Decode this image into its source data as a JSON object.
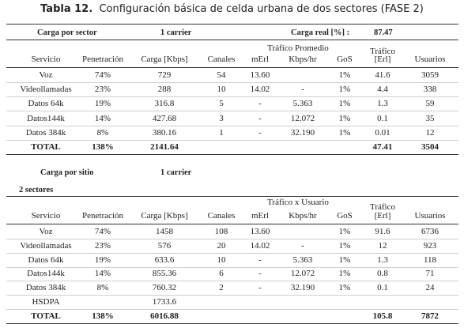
{
  "caption": {
    "label": "Tabla 12.",
    "text": "Configuración básica de celda urbana de dos sectores (FASE 2)"
  },
  "table1": {
    "meta_left_label": "Carga por sector",
    "meta_left_value": "1 carrier",
    "meta_right_label": "Carga real [%] :",
    "meta_right_value": "87.47",
    "group_header": "Tráfico Promedio",
    "traffic_header": "Tráfico",
    "headers": [
      "Servicio",
      "Penetración",
      "Carga [Kbps]",
      "Canales",
      "mErl",
      "Kbps/hr",
      "GoS",
      "[Erl]",
      "Usuarios"
    ],
    "rows": [
      [
        "Voz",
        "74%",
        "729",
        "54",
        "13.60",
        "",
        "1%",
        "41.6",
        "3059"
      ],
      [
        "Videollamadas",
        "23%",
        "288",
        "10",
        "14.02",
        "-",
        "1%",
        "4.4",
        "338"
      ],
      [
        "Datos 64k",
        "19%",
        "316.8",
        "5",
        "-",
        "5.363",
        "1%",
        "1.3",
        "59"
      ],
      [
        "Datos144k",
        "14%",
        "427.68",
        "3",
        "-",
        "12.072",
        "1%",
        "0.1",
        "35"
      ],
      [
        "Datos 384k",
        "8%",
        "380.16",
        "1",
        "-",
        "32.190",
        "1%",
        "0.01",
        "12"
      ]
    ],
    "total": [
      "TOTAL",
      "138%",
      "2141.64",
      "",
      "",
      "",
      "",
      "47.41",
      "3504"
    ]
  },
  "table2": {
    "meta_left_label": "Carga por sitio",
    "meta_left_value": "1 carrier",
    "sectors_label": "2 sectores",
    "group_header": "Tráfico x Usuario",
    "traffic_header": "Tráfico",
    "headers": [
      "Servicio",
      "Penetración",
      "Carga [Kbps]",
      "Canales",
      "mErl",
      "Kbps/hr",
      "GoS",
      "[Erl]",
      "Usuarios"
    ],
    "rows": [
      [
        "Voz",
        "74%",
        "1458",
        "108",
        "13.60",
        "",
        "1%",
        "91.6",
        "6736"
      ],
      [
        "Videollamadas",
        "23%",
        "576",
        "20",
        "14.02",
        "-",
        "1%",
        "12",
        "923"
      ],
      [
        "Datos 64k",
        "19%",
        "633.6",
        "10",
        "-",
        "5.363",
        "1%",
        "1.3",
        "118"
      ],
      [
        "Datos144k",
        "14%",
        "855.36",
        "6",
        "-",
        "12.072",
        "1%",
        "0.8",
        "71"
      ],
      [
        "Datos 384k",
        "8%",
        "760.32",
        "2",
        "-",
        "32.190",
        "1%",
        "0.1",
        "24"
      ],
      [
        "HSDPA",
        "",
        "1733.6",
        "",
        "",
        "",
        "",
        "",
        ""
      ]
    ],
    "total": [
      "TOTAL",
      "138%",
      "6016.88",
      "",
      "",
      "",
      "",
      "105.8",
      "7872"
    ]
  }
}
